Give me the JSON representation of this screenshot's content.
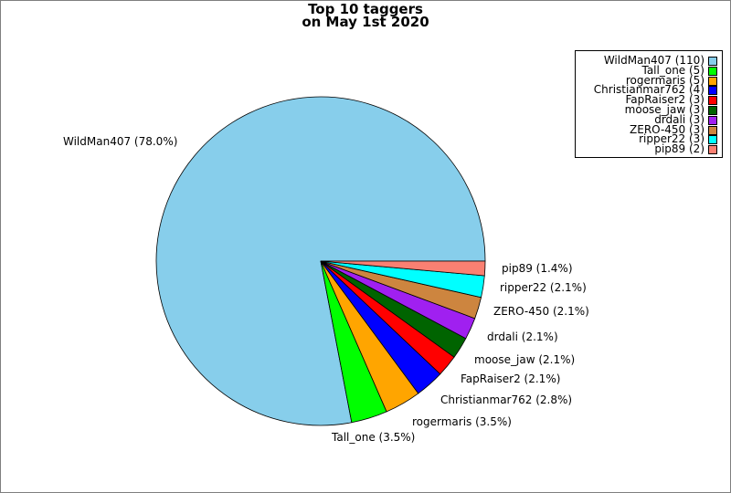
{
  "chart_data": {
    "type": "pie",
    "title": [
      "Top 10 taggers",
      "on May 1st 2020"
    ],
    "slices": [
      {
        "name": "WildMan407",
        "value": 110,
        "percent_label": "WildMan407 (78.0%)",
        "legend_label": "WildMan407 (110)",
        "color": "#87ceeb"
      },
      {
        "name": "Tall_one",
        "value": 5,
        "percent_label": "Tall_one (3.5%)",
        "legend_label": "Tall_one (5)",
        "color": "#00ff00"
      },
      {
        "name": "rogermaris",
        "value": 5,
        "percent_label": "rogermaris (3.5%)",
        "legend_label": "rogermaris (5)",
        "color": "#ffa500"
      },
      {
        "name": "Christianmar762",
        "value": 4,
        "percent_label": "Christianmar762 (2.8%)",
        "legend_label": "Christianmar762 (4)",
        "color": "#0000ff"
      },
      {
        "name": "FapRaiser2",
        "value": 3,
        "percent_label": "FapRaiser2 (2.1%)",
        "legend_label": "FapRaiser2 (3)",
        "color": "#ff0000"
      },
      {
        "name": "moose_jaw",
        "value": 3,
        "percent_label": "moose_jaw (2.1%)",
        "legend_label": "moose_jaw (3)",
        "color": "#006400"
      },
      {
        "name": "drdali",
        "value": 3,
        "percent_label": "drdali (2.1%)",
        "legend_label": "drdali (3)",
        "color": "#a020f0"
      },
      {
        "name": "ZERO-450",
        "value": 3,
        "percent_label": "ZERO-450 (2.1%)",
        "legend_label": "ZERO-450 (3)",
        "color": "#cd853f"
      },
      {
        "name": "ripper22",
        "value": 3,
        "percent_label": "ripper22 (2.1%)",
        "legend_label": "ripper22 (3)",
        "color": "#00ffff"
      },
      {
        "name": "pip89",
        "value": 2,
        "percent_label": "pip89 (1.4%)",
        "legend_label": "pip89 (2)",
        "color": "#fa8072"
      }
    ],
    "legend_position": "top-right"
  }
}
